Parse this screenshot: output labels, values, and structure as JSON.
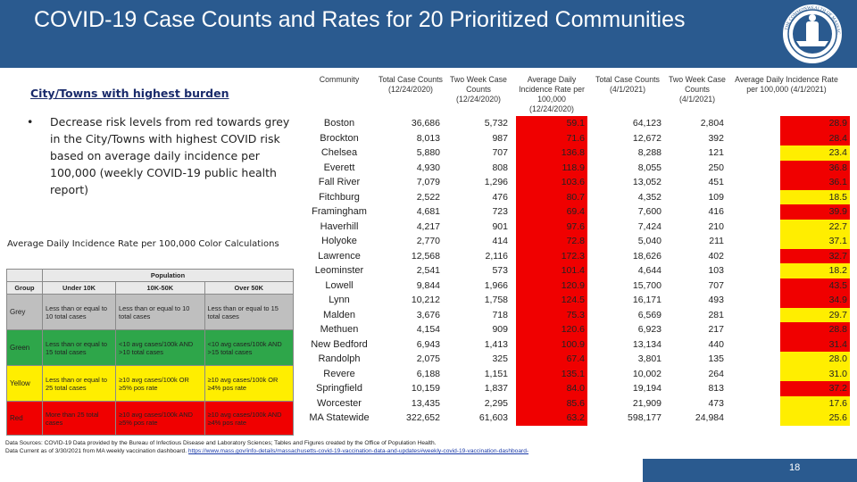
{
  "header": {
    "title": "COVID-19 Case Counts and Rates for 20 Prioritized Communities",
    "seal_text": "THE COMMONWEALTH OF MASSACHUSETTS"
  },
  "left": {
    "heading": "City/Towns with highest burden",
    "bullet": "Decrease risk levels from red towards grey in the City/Towns with highest COVID risk based on average daily incidence per 100,000 (weekly COVID-19 public health report)",
    "calc_caption": "Average Daily Incidence Rate per 100,000 Color Calculations"
  },
  "legend": {
    "population_label": "Population",
    "headers": [
      "Group",
      "Under 10K",
      "10K-50K",
      "Over 50K"
    ],
    "rows": [
      {
        "group": "Grey",
        "color": "#bfbfbf",
        "under10k": "Less than or equal to 10 total cases",
        "k10_50": "Less than or equal to 10 total cases",
        "over50k": "Less than or equal to 15 total cases"
      },
      {
        "group": "Green",
        "color": "#2ea64a",
        "under10k": "Less than or equal to 15 total cases",
        "k10_50": "<10 avg cases/100k AND >10 total cases",
        "over50k": "<10 avg cases/100k AND >15 total cases"
      },
      {
        "group": "Yellow",
        "color": "#ffee00",
        "under10k": "Less than or equal to 25 total cases",
        "k10_50": "≥10 avg cases/100k OR ≥5% pos rate",
        "over50k": "≥10 avg cases/100k OR ≥4% pos rate"
      },
      {
        "group": "Red",
        "color": "#f00000",
        "under10k": "More than 25 total cases",
        "k10_50": "≥10 avg cases/100k AND ≥5% pos rate",
        "over50k": "≥10 avg cases/100k AND ≥4% pos rate"
      }
    ]
  },
  "table": {
    "columns": [
      "Community",
      "Total Case Counts (12/24/2020)",
      "Two Week Case Counts (12/24/2020)",
      "Average Daily Incidence Rate per 100,000 (12/24/2020)",
      "Total Case Counts (4/1/2021)",
      "Two Week Case Counts (4/1/2021)",
      "Average Daily Incidence Rate per 100,000 (4/1/2021)"
    ],
    "rows": [
      {
        "community": "Boston",
        "total_dec": "36,686",
        "twoweek_dec": "5,732",
        "rate_dec": "59.1",
        "total_apr": "64,123",
        "twoweek_apr": "2,804",
        "rate_apr": "28.9",
        "color_apr": "red"
      },
      {
        "community": "Brockton",
        "total_dec": "8,013",
        "twoweek_dec": "987",
        "rate_dec": "71.6",
        "total_apr": "12,672",
        "twoweek_apr": "392",
        "rate_apr": "28.4",
        "color_apr": "red"
      },
      {
        "community": "Chelsea",
        "total_dec": "5,880",
        "twoweek_dec": "707",
        "rate_dec": "136.8",
        "total_apr": "8,288",
        "twoweek_apr": "121",
        "rate_apr": "23.4",
        "color_apr": "yellow"
      },
      {
        "community": "Everett",
        "total_dec": "4,930",
        "twoweek_dec": "808",
        "rate_dec": "118.9",
        "total_apr": "8,055",
        "twoweek_apr": "250",
        "rate_apr": "36.8",
        "color_apr": "red"
      },
      {
        "community": "Fall River",
        "total_dec": "7,079",
        "twoweek_dec": "1,296",
        "rate_dec": "103.6",
        "total_apr": "13,052",
        "twoweek_apr": "451",
        "rate_apr": "36.1",
        "color_apr": "red"
      },
      {
        "community": "Fitchburg",
        "total_dec": "2,522",
        "twoweek_dec": "476",
        "rate_dec": "80.7",
        "total_apr": "4,352",
        "twoweek_apr": "109",
        "rate_apr": "18.5",
        "color_apr": "yellow"
      },
      {
        "community": "Framingham",
        "total_dec": "4,681",
        "twoweek_dec": "723",
        "rate_dec": "69.4",
        "total_apr": "7,600",
        "twoweek_apr": "416",
        "rate_apr": "39.9",
        "color_apr": "red"
      },
      {
        "community": "Haverhill",
        "total_dec": "4,217",
        "twoweek_dec": "901",
        "rate_dec": "97.6",
        "total_apr": "7,424",
        "twoweek_apr": "210",
        "rate_apr": "22.7",
        "color_apr": "yellow"
      },
      {
        "community": "Holyoke",
        "total_dec": "2,770",
        "twoweek_dec": "414",
        "rate_dec": "72.8",
        "total_apr": "5,040",
        "twoweek_apr": "211",
        "rate_apr": "37.1",
        "color_apr": "yellow"
      },
      {
        "community": "Lawrence",
        "total_dec": "12,568",
        "twoweek_dec": "2,116",
        "rate_dec": "172.3",
        "total_apr": "18,626",
        "twoweek_apr": "402",
        "rate_apr": "32.7",
        "color_apr": "red"
      },
      {
        "community": "Leominster",
        "total_dec": "2,541",
        "twoweek_dec": "573",
        "rate_dec": "101.4",
        "total_apr": "4,644",
        "twoweek_apr": "103",
        "rate_apr": "18.2",
        "color_apr": "yellow"
      },
      {
        "community": "Lowell",
        "total_dec": "9,844",
        "twoweek_dec": "1,966",
        "rate_dec": "120.9",
        "total_apr": "15,700",
        "twoweek_apr": "707",
        "rate_apr": "43.5",
        "color_apr": "red"
      },
      {
        "community": "Lynn",
        "total_dec": "10,212",
        "twoweek_dec": "1,758",
        "rate_dec": "124.5",
        "total_apr": "16,171",
        "twoweek_apr": "493",
        "rate_apr": "34.9",
        "color_apr": "red"
      },
      {
        "community": "Malden",
        "total_dec": "3,676",
        "twoweek_dec": "718",
        "rate_dec": "75.3",
        "total_apr": "6,569",
        "twoweek_apr": "281",
        "rate_apr": "29.7",
        "color_apr": "yellow"
      },
      {
        "community": "Methuen",
        "total_dec": "4,154",
        "twoweek_dec": "909",
        "rate_dec": "120.6",
        "total_apr": "6,923",
        "twoweek_apr": "217",
        "rate_apr": "28.8",
        "color_apr": "red"
      },
      {
        "community": "New Bedford",
        "total_dec": "6,943",
        "twoweek_dec": "1,413",
        "rate_dec": "100.9",
        "total_apr": "13,134",
        "twoweek_apr": "440",
        "rate_apr": "31.4",
        "color_apr": "red"
      },
      {
        "community": "Randolph",
        "total_dec": "2,075",
        "twoweek_dec": "325",
        "rate_dec": "67.4",
        "total_apr": "3,801",
        "twoweek_apr": "135",
        "rate_apr": "28.0",
        "color_apr": "yellow"
      },
      {
        "community": "Revere",
        "total_dec": "6,188",
        "twoweek_dec": "1,151",
        "rate_dec": "135.1",
        "total_apr": "10,002",
        "twoweek_apr": "264",
        "rate_apr": "31.0",
        "color_apr": "yellow"
      },
      {
        "community": "Springfield",
        "total_dec": "10,159",
        "twoweek_dec": "1,837",
        "rate_dec": "84.0",
        "total_apr": "19,194",
        "twoweek_apr": "813",
        "rate_apr": "37.2",
        "color_apr": "red"
      },
      {
        "community": "Worcester",
        "total_dec": "13,435",
        "twoweek_dec": "2,295",
        "rate_dec": "85.6",
        "total_apr": "21,909",
        "twoweek_apr": "473",
        "rate_apr": "17.6",
        "color_apr": "yellow"
      },
      {
        "community": "MA Statewide",
        "total_dec": "322,652",
        "twoweek_dec": "61,603",
        "rate_dec": "63.2",
        "total_apr": "598,177",
        "twoweek_apr": "24,984",
        "rate_apr": "25.6",
        "color_apr": "yellow"
      }
    ]
  },
  "footer": {
    "line1": "Data Sources: COVID-19 Data provided by the Bureau of Infectious Disease and Laboratory Sciences; Tables and Figures created by the Office of Population Health.",
    "line2_prefix": "Data Current as of 3/30/2021 from MA weekly vaccination dashboard.",
    "line2_link": "https://www.mass.gov/info-details/massachusetts-covid-19-vaccination-data-and-updates#weekly-covid-19-vaccination-dashboard-"
  },
  "page_number": "18",
  "colors": {
    "header_blue": "#2a5a8f",
    "red": "#f00000",
    "yellow": "#ffee00",
    "green": "#2ea64a",
    "grey": "#bfbfbf"
  }
}
